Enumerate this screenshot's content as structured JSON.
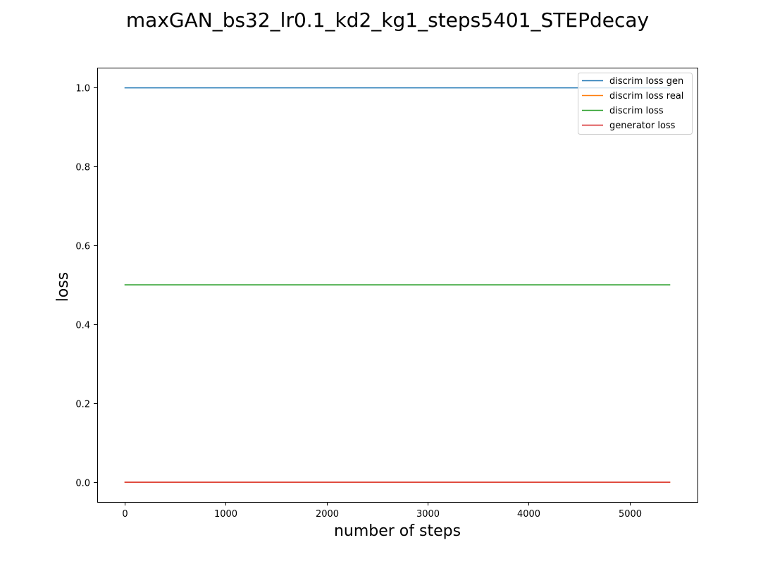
{
  "chart_data": {
    "type": "line",
    "title": "maxGAN_bs32_lr0.1_kd2_kg1_steps5401_STEPdecay",
    "xlabel": "number of steps",
    "ylabel": "loss",
    "xlim": [
      -270,
      5670
    ],
    "ylim": [
      -0.05,
      1.05
    ],
    "xticks": [
      0,
      1000,
      2000,
      3000,
      4000,
      5000
    ],
    "yticks": [
      0.0,
      0.2,
      0.4,
      0.6,
      0.8,
      1.0
    ],
    "xtick_labels": [
      "0",
      "1000",
      "2000",
      "3000",
      "4000",
      "5000"
    ],
    "ytick_labels": [
      "0.0",
      "0.2",
      "0.4",
      "0.6",
      "0.8",
      "1.0"
    ],
    "grid": false,
    "legend_position": "top-right",
    "series": [
      {
        "name": "discrim loss gen",
        "color": "#1f77b4",
        "x": [
          0,
          5400
        ],
        "y": [
          0.999,
          0.999
        ]
      },
      {
        "name": "discrim loss real",
        "color": "#ff7f0e",
        "x": [
          0,
          5400
        ],
        "y": [
          0.0,
          0.0
        ]
      },
      {
        "name": "discrim loss",
        "color": "#2ca02c",
        "x": [
          0,
          5400
        ],
        "y": [
          0.5,
          0.5
        ]
      },
      {
        "name": "generator loss",
        "color": "#d62728",
        "x": [
          0,
          5400
        ],
        "y": [
          0.0,
          0.0
        ]
      }
    ]
  }
}
